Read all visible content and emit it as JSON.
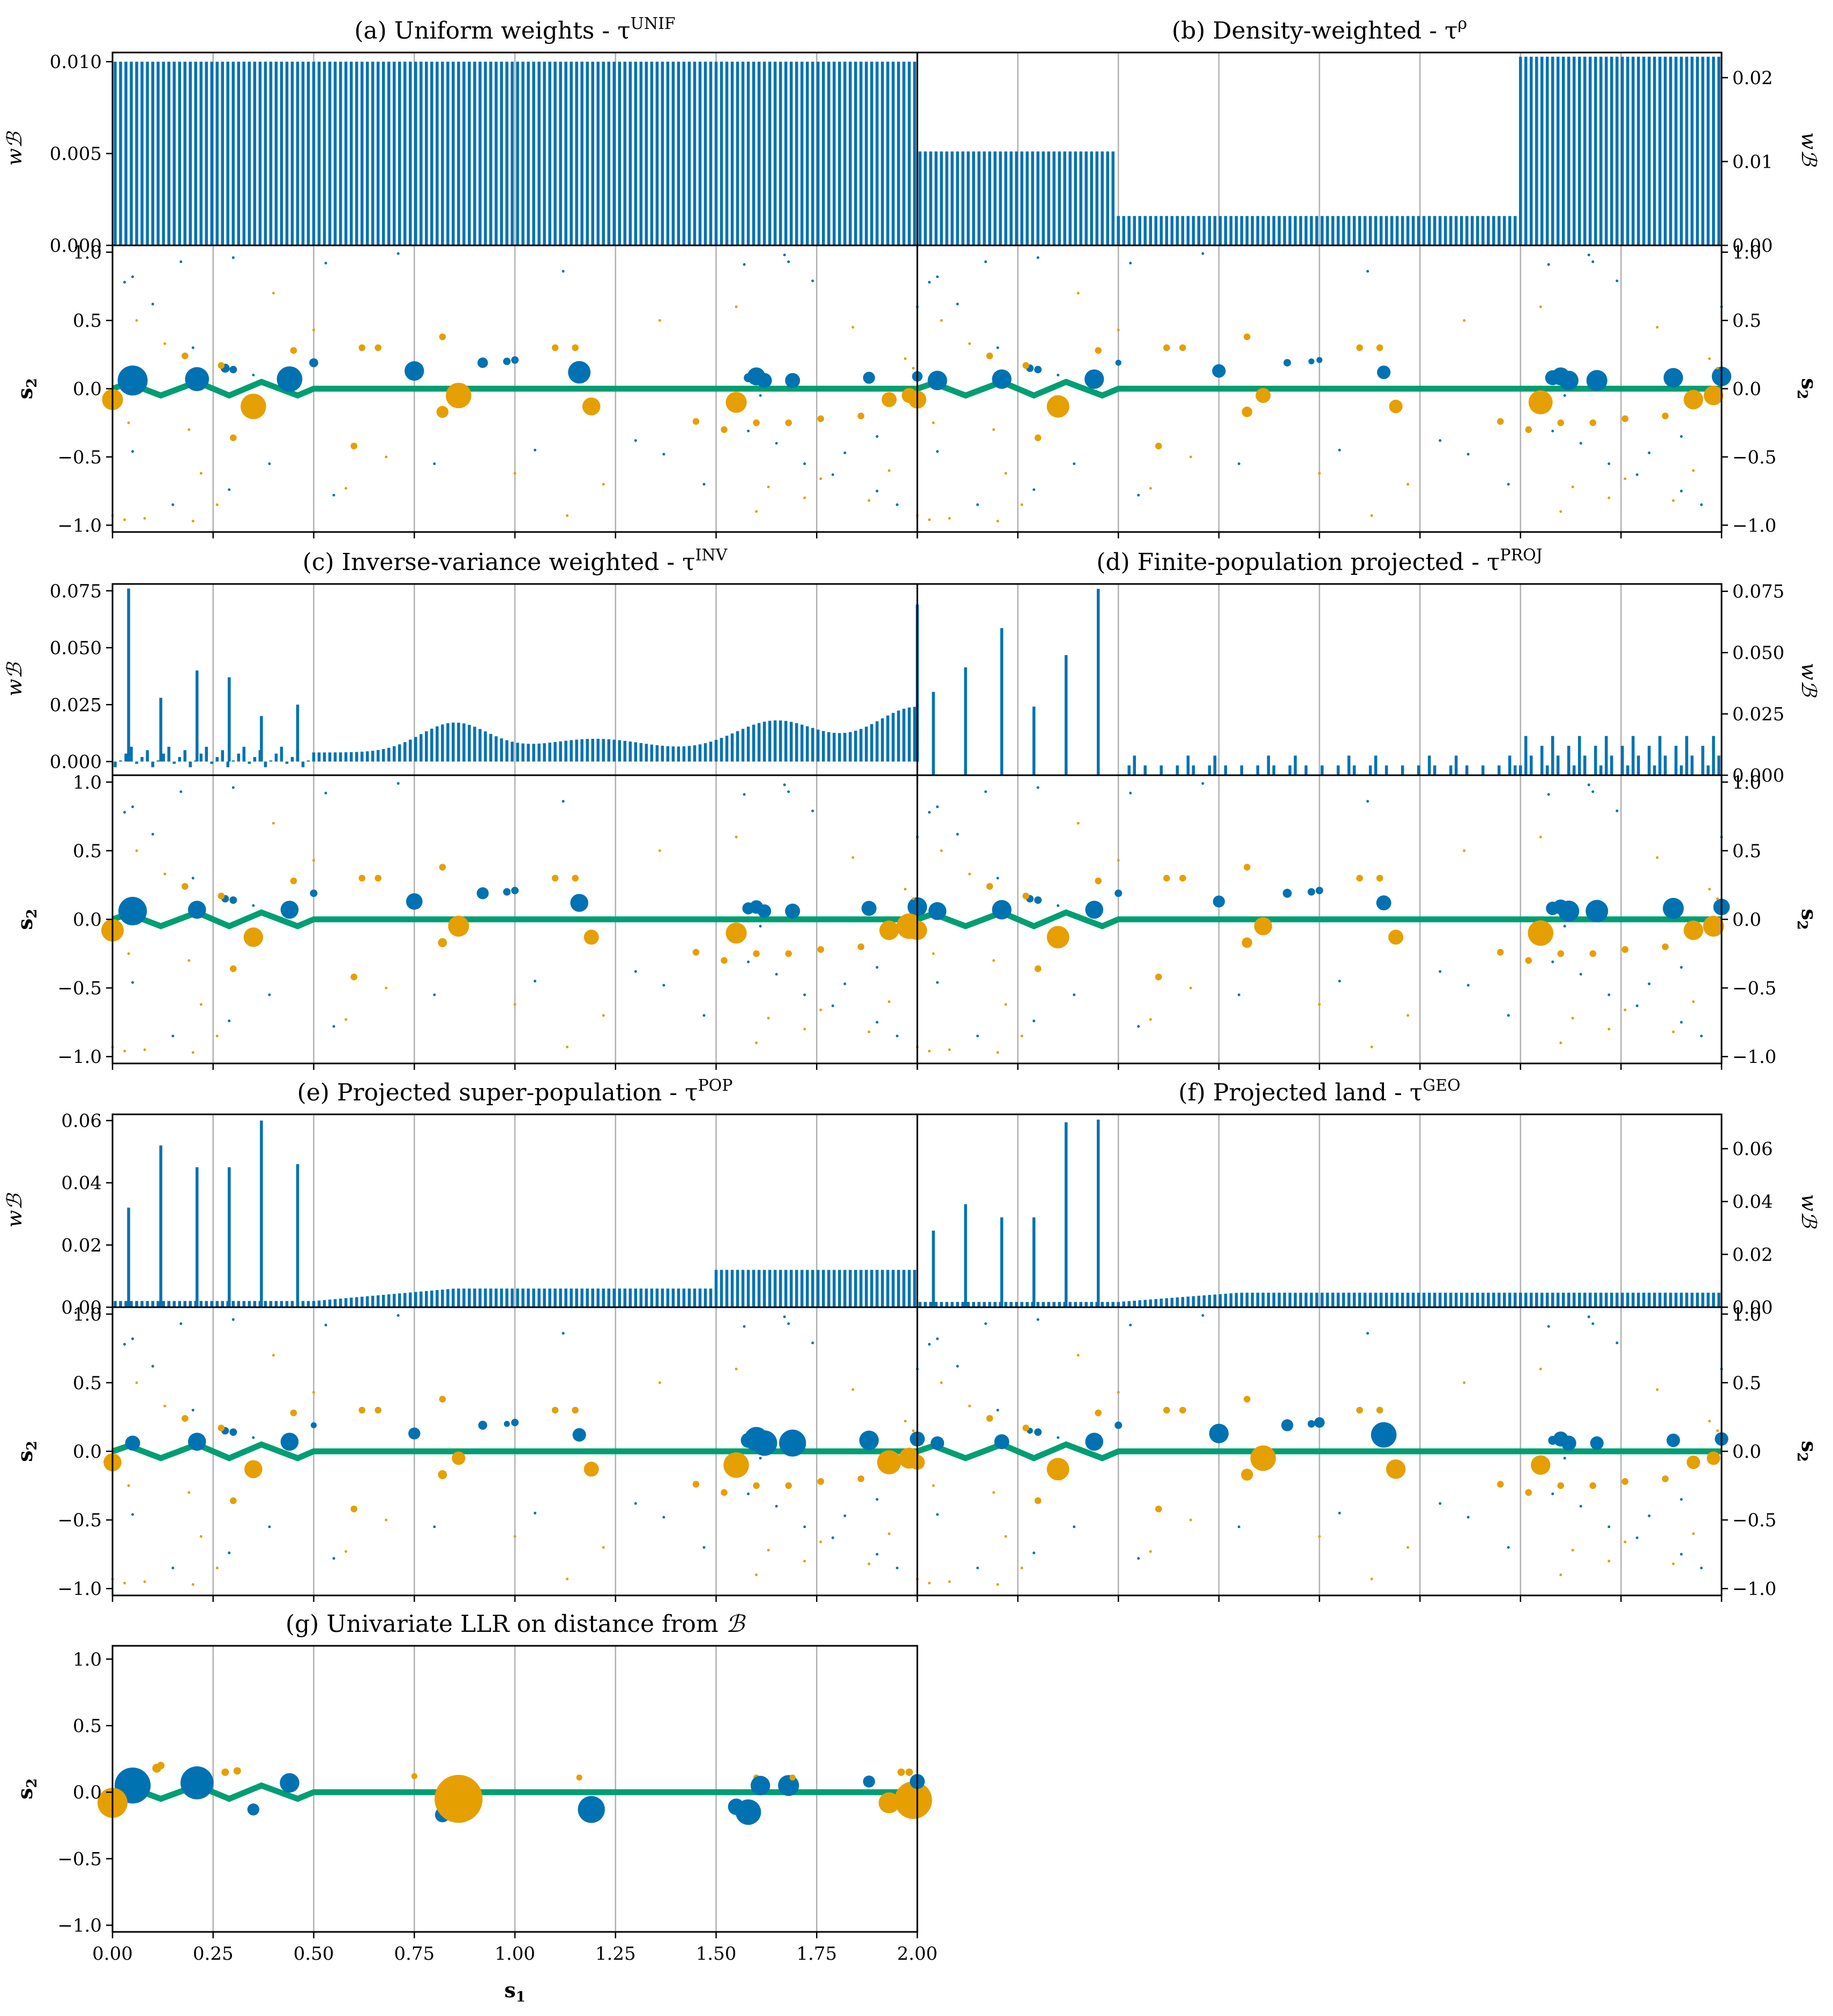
{
  "colors": {
    "blue": "#0072b2",
    "orange": "#e69f00",
    "green": "#009e73",
    "grid": "#b0b0b0"
  },
  "labels": {
    "weight_axis": "wℬ",
    "s1": "s1",
    "s2": "s2"
  },
  "chart_data": [
    {
      "id": "a",
      "title": "(a) Uniform weights - τ",
      "title_sup": "UNIF",
      "type": "bar",
      "weight_kind": "uniform",
      "ylim": [
        0,
        0.0105
      ],
      "yticks": [
        "0.000",
        "0.005",
        "0.010"
      ],
      "ytick_values": [
        0,
        0.005,
        0.01
      ],
      "axis_side": "left",
      "xlim": [
        0,
        2
      ],
      "grid": "vertical"
    },
    {
      "id": "b",
      "title": "(b) Density-weighted - τ",
      "title_sup": "ρ",
      "type": "bar",
      "weight_kind": "density",
      "segments": [
        {
          "x0": 0,
          "x1": 0.5,
          "value": 0.0112
        },
        {
          "x0": 0.5,
          "x1": 1.5,
          "value": 0.0035
        },
        {
          "x0": 1.5,
          "x1": 2.0,
          "value": 0.0225
        }
      ],
      "ylim": [
        0,
        0.023
      ],
      "yticks": [
        "0.00",
        "0.01",
        "0.02"
      ],
      "ytick_values": [
        0,
        0.01,
        0.02
      ],
      "axis_side": "right",
      "xlim": [
        0,
        2
      ],
      "grid": "vertical"
    },
    {
      "id": "c",
      "title": "(c) Inverse-variance weighted - τ",
      "title_sup": "INV",
      "type": "bar",
      "weight_kind": "inverse-variance",
      "spikes": [
        [
          0.04,
          0.076
        ],
        [
          0.12,
          0.028
        ],
        [
          0.21,
          0.04
        ],
        [
          0.29,
          0.037
        ],
        [
          0.37,
          0.02
        ],
        [
          0.46,
          0.025
        ],
        [
          2.0,
          0.069
        ]
      ],
      "ylim": [
        -0.006,
        0.078
      ],
      "yticks": [
        "0.000",
        "0.025",
        "0.050",
        "0.075"
      ],
      "ytick_values": [
        0,
        0.025,
        0.05,
        0.075
      ],
      "axis_side": "left",
      "xlim": [
        0,
        2
      ],
      "grid": "vertical"
    },
    {
      "id": "d",
      "title": "(d) Finite-population projected - τ",
      "title_sup": "PROJ",
      "type": "bar",
      "weight_kind": "projected",
      "spikes": [
        [
          0.04,
          0.034
        ],
        [
          0.12,
          0.044
        ],
        [
          0.21,
          0.06
        ],
        [
          0.29,
          0.028
        ],
        [
          0.37,
          0.049
        ],
        [
          0.45,
          0.076
        ]
      ],
      "ylim": [
        0,
        0.078
      ],
      "yticks": [
        "0.000",
        "0.025",
        "0.050",
        "0.075"
      ],
      "ytick_values": [
        0,
        0.025,
        0.05,
        0.075
      ],
      "axis_side": "right",
      "xlim": [
        0,
        2
      ],
      "grid": "vertical"
    },
    {
      "id": "e",
      "title": "(e) Projected super-population - τ",
      "title_sup": "POP",
      "type": "bar",
      "weight_kind": "super-population",
      "spikes": [
        [
          0.04,
          0.032
        ],
        [
          0.12,
          0.052
        ],
        [
          0.21,
          0.045
        ],
        [
          0.29,
          0.045
        ],
        [
          0.37,
          0.06
        ],
        [
          0.46,
          0.046
        ]
      ],
      "ylim": [
        0,
        0.062
      ],
      "yticks": [
        "0.00",
        "0.02",
        "0.04",
        "0.06"
      ],
      "ytick_values": [
        0,
        0.02,
        0.04,
        0.06
      ],
      "axis_side": "left",
      "xlim": [
        0,
        2
      ],
      "grid": "vertical"
    },
    {
      "id": "f",
      "title": "(f) Projected land - τ",
      "title_sup": "GEO",
      "type": "bar",
      "weight_kind": "land",
      "spikes": [
        [
          0.04,
          0.029
        ],
        [
          0.12,
          0.039
        ],
        [
          0.21,
          0.034
        ],
        [
          0.29,
          0.034
        ],
        [
          0.37,
          0.07
        ],
        [
          0.45,
          0.071
        ]
      ],
      "ylim": [
        0,
        0.073
      ],
      "yticks": [
        "0.00",
        "0.02",
        "0.04",
        "0.06"
      ],
      "ytick_values": [
        0,
        0.02,
        0.04,
        0.06
      ],
      "axis_side": "right",
      "xlim": [
        0,
        2
      ],
      "grid": "vertical"
    },
    {
      "id": "g",
      "title": "(g) Univariate LLR on distance from ",
      "title_tail": "ℬ",
      "type": "scatter",
      "xlim": [
        0,
        2
      ],
      "ylim": [
        -1.05,
        1.1
      ],
      "xticks": [
        "0.00",
        "0.25",
        "0.50",
        "0.75",
        "1.00",
        "1.25",
        "1.50",
        "1.75",
        "2.00"
      ],
      "xtick_values": [
        0,
        0.25,
        0.5,
        0.75,
        1,
        1.25,
        1.5,
        1.75,
        2
      ],
      "yticks": [
        "−1.0",
        "−0.5",
        "0.0",
        "0.5",
        "1.0"
      ],
      "ytick_values": [
        -1,
        -0.5,
        0,
        0.5,
        1
      ],
      "xlabel": "s1",
      "ylabel": "s2",
      "points": [
        [
          0.05,
          0.05,
          "blue",
          2.4
        ],
        [
          0.0,
          -0.08,
          "orange",
          2.0
        ],
        [
          0.21,
          0.07,
          "blue",
          2.2
        ],
        [
          0.11,
          0.18,
          "orange",
          0.6
        ],
        [
          0.12,
          0.2,
          "orange",
          0.5
        ],
        [
          0.28,
          0.15,
          "orange",
          0.5
        ],
        [
          0.31,
          0.16,
          "orange",
          0.5
        ],
        [
          0.35,
          -0.13,
          "blue",
          0.8
        ],
        [
          0.44,
          0.07,
          "blue",
          1.3
        ],
        [
          0.75,
          0.12,
          "orange",
          0.4
        ],
        [
          0.82,
          -0.17,
          "blue",
          1.0
        ],
        [
          0.86,
          -0.05,
          "orange",
          3.2
        ],
        [
          1.16,
          0.11,
          "orange",
          0.4
        ],
        [
          1.19,
          -0.13,
          "blue",
          1.8
        ],
        [
          1.55,
          -0.11,
          "blue",
          1.1
        ],
        [
          1.58,
          -0.15,
          "blue",
          1.7
        ],
        [
          1.6,
          0.11,
          "orange",
          0.4
        ],
        [
          1.61,
          0.05,
          "blue",
          1.3
        ],
        [
          1.68,
          0.05,
          "blue",
          1.4
        ],
        [
          1.69,
          0.11,
          "orange",
          0.4
        ],
        [
          1.88,
          0.08,
          "blue",
          0.8
        ],
        [
          1.93,
          -0.08,
          "orange",
          1.4
        ],
        [
          1.96,
          0.15,
          "orange",
          0.5
        ],
        [
          1.98,
          0.15,
          "orange",
          0.5
        ],
        [
          1.99,
          -0.06,
          "orange",
          2.5
        ],
        [
          2.0,
          0.08,
          "blue",
          1.0
        ]
      ]
    }
  ]
}
